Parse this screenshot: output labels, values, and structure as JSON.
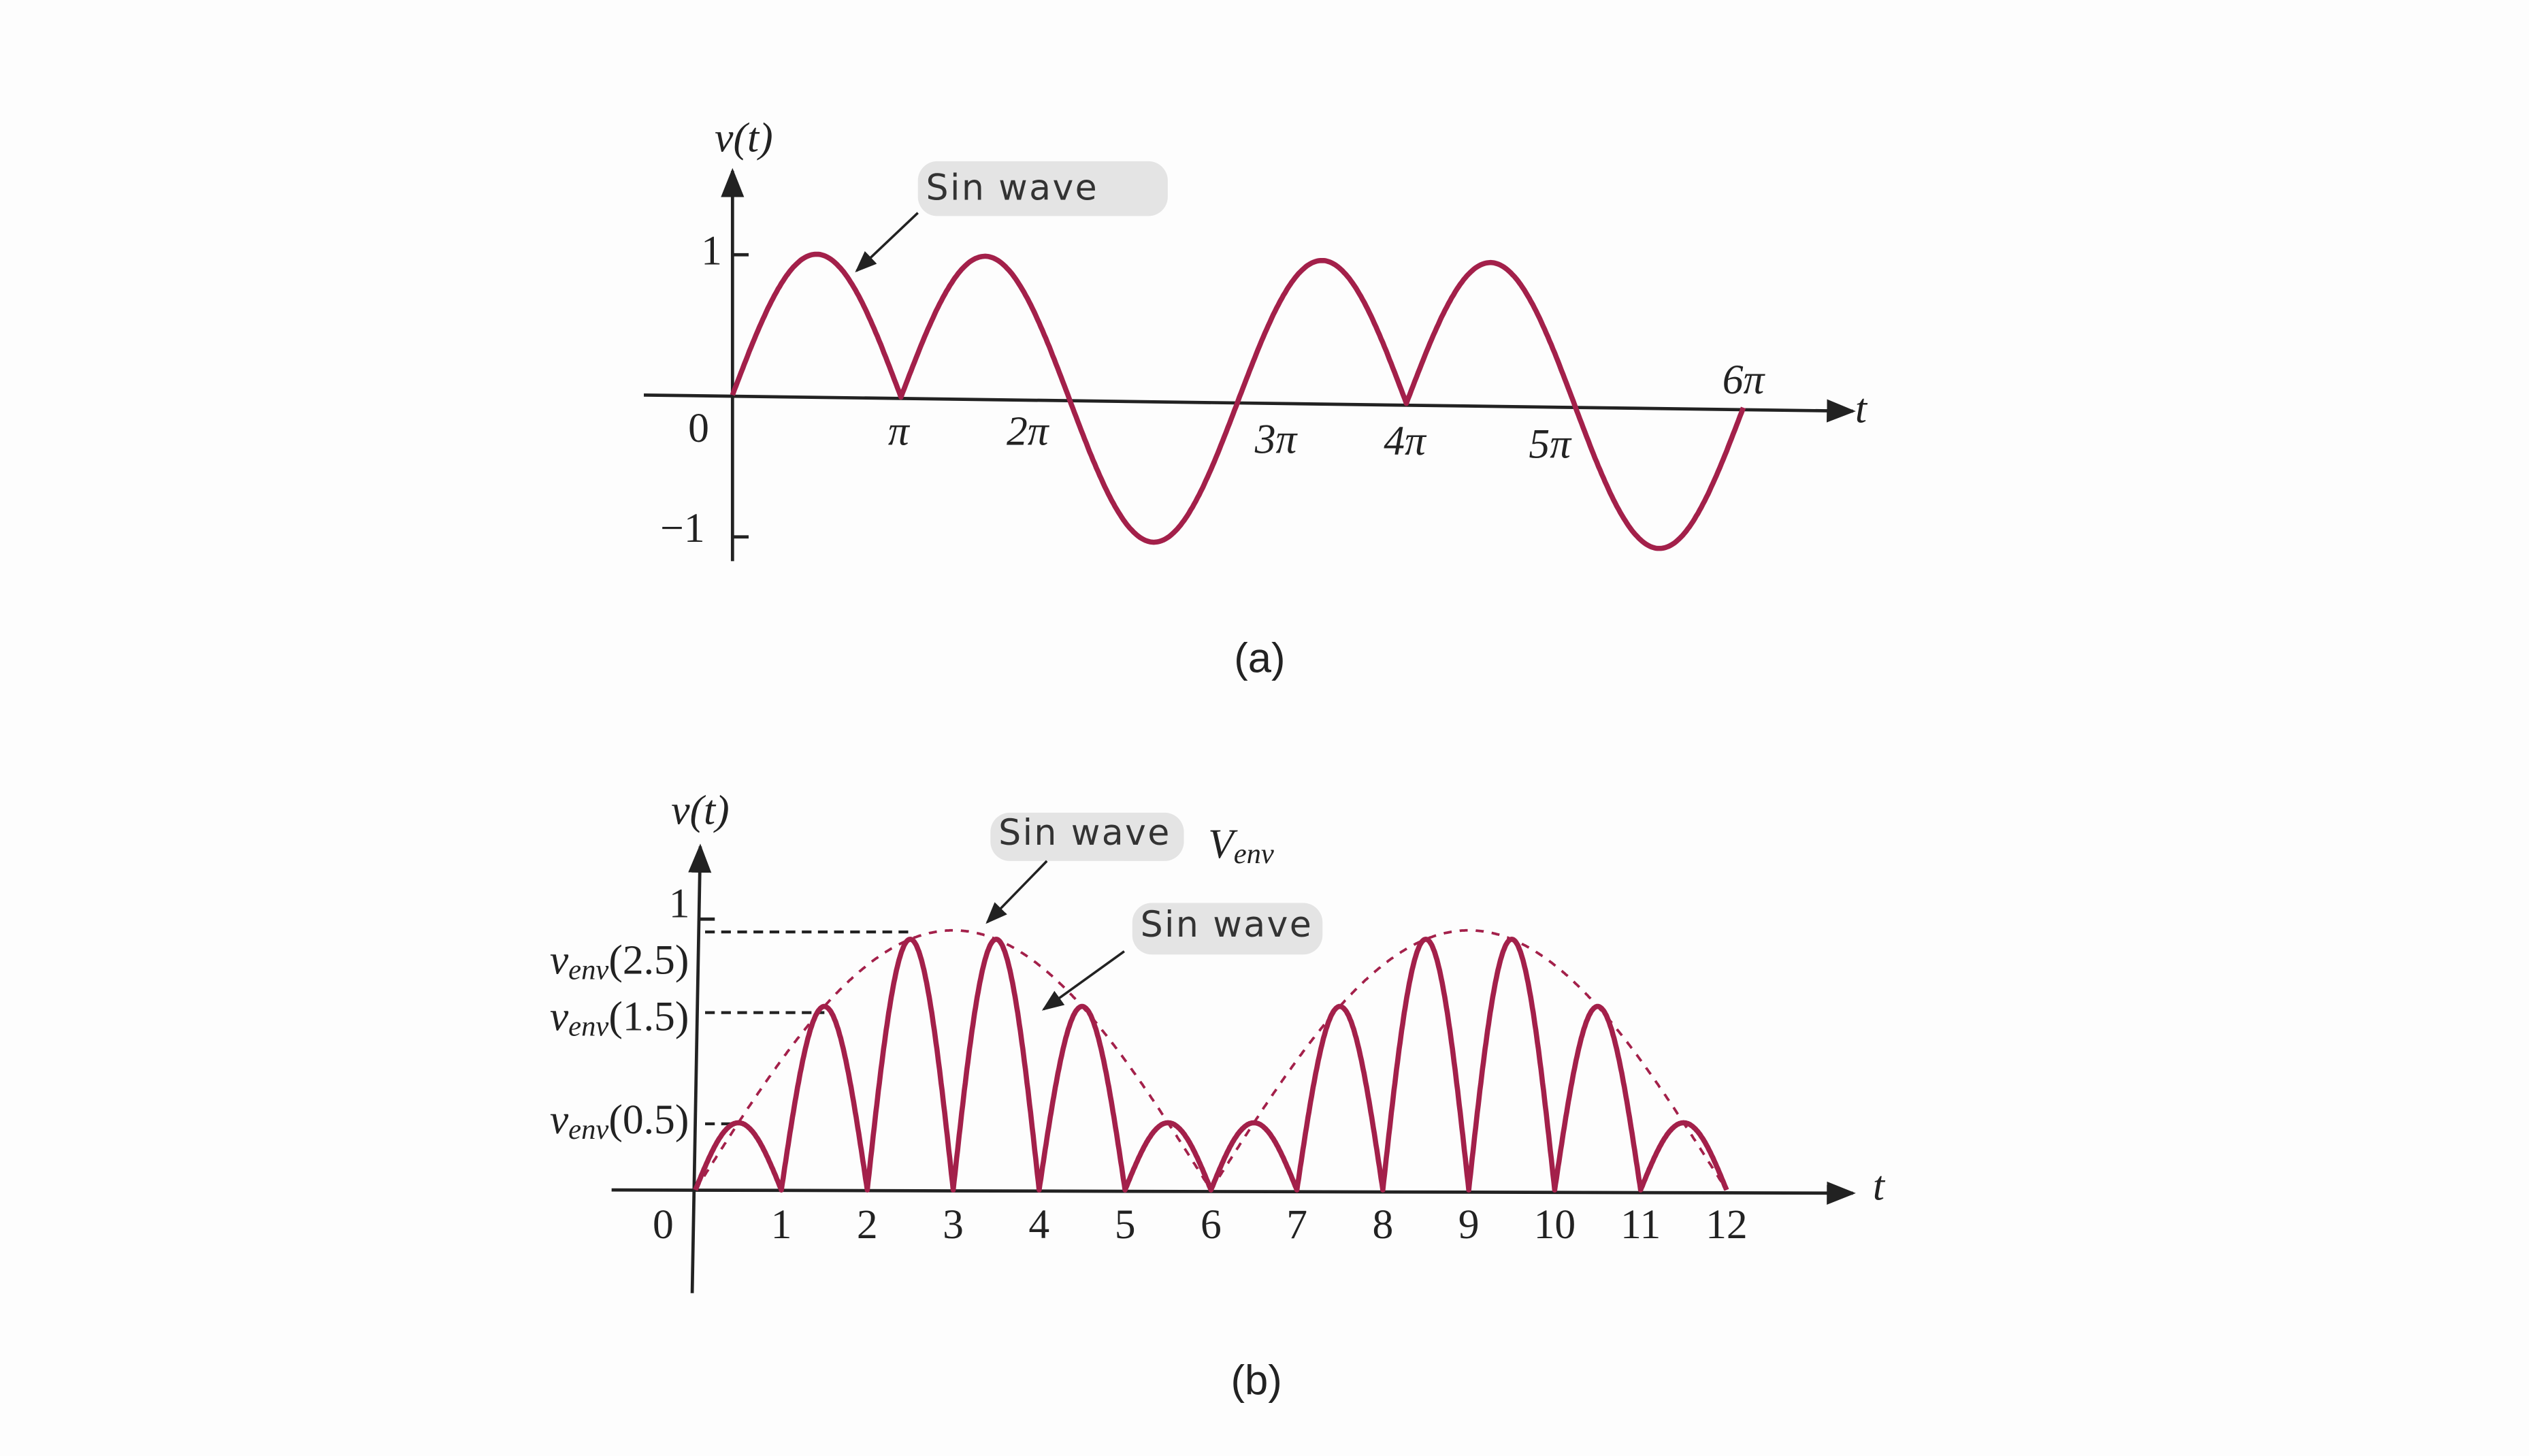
{
  "panel_a": {
    "y_label": "v(t)",
    "y_ticks": [
      "1",
      "0",
      "−1"
    ],
    "x_ticks": [
      "π",
      "2π",
      "3π",
      "4π",
      "5π",
      "6π"
    ],
    "x_label": "t",
    "annotation": "Sin wave",
    "caption": "(a)"
  },
  "panel_b": {
    "y_label": "v(t)",
    "y_top": "1",
    "origin": "0",
    "envelope_labels": [
      {
        "symbol": "v",
        "subscript": "env",
        "argument": "(2.5)"
      },
      {
        "symbol": "v",
        "subscript": "env",
        "argument": "(1.5)"
      },
      {
        "symbol": "v",
        "subscript": "env",
        "argument": "(0.5)"
      }
    ],
    "x_ticks": [
      "1",
      "2",
      "3",
      "4",
      "5",
      "6",
      "7",
      "8",
      "9",
      "10",
      "11",
      "12"
    ],
    "x_label": "t",
    "annotation_envelope": "Sin wave",
    "envelope_name": {
      "symbol": "V",
      "subscript": "env"
    },
    "annotation_carrier": "Sin wave",
    "caption": "(b)"
  }
}
